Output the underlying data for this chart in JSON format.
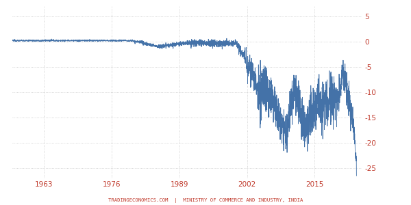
{
  "line_color": "#4472a8",
  "background_color": "#ffffff",
  "grid_color": "#c8c8c8",
  "x_ticks": [
    1963,
    1976,
    1989,
    2002,
    2015
  ],
  "y_ticks": [
    5,
    0,
    -5,
    -10,
    -15,
    -20,
    -25
  ],
  "ylim": [
    -27,
    7
  ],
  "xlim": [
    1957,
    2024
  ],
  "footer_text": "TRADINGECONOMICS.COM  |  MINISTRY OF COMMERCE AND INDUSTRY, INDIA",
  "footer_color": "#c0392b",
  "tick_label_color": "#c0392b",
  "year_start": 1957,
  "year_end": 2023
}
